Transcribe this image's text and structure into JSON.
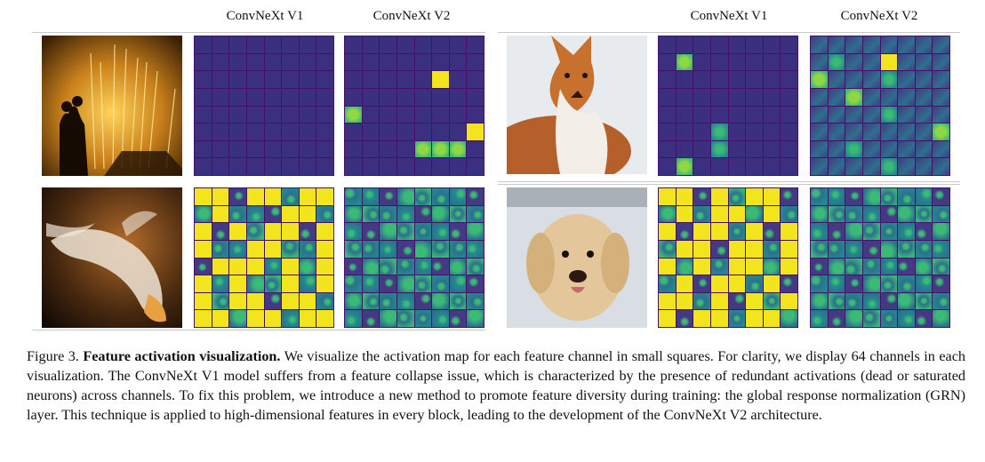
{
  "figure": {
    "column_headers": {
      "left_v1": "ConvNeXt V1",
      "left_v2": "ConvNeXt V2",
      "right_v1": "ConvNeXt V1",
      "right_v2": "ConvNeXt V2"
    },
    "colors": {
      "dead": "#3b2f7f",
      "low": "#443a83",
      "mid": "#2d6f8e",
      "teal": "#23898e",
      "green": "#3aba76",
      "bright": "#8fd744",
      "saturated": "#f2e41d"
    },
    "grids": {
      "g_fountain_v1": "AAAAAAAAAAAAAAAAAAAAAAAAAAAAAAAAAAAAAAAAAAAAAAAAAAAAAAAAAAAAAAAA",
      "g_fountain_v2": "AAAAAAAAAAAAAAAAAAAAASAAAAAAAAAAEAAAAAAAAAAAAAASAAAAEEEAAAAAAAAA",
      "g_fox_v1": "AAAAAAAAAEAAAAAAAAAAAAAAAAAAAAAAAAAAAAAAAAAGAAAAAAAGAAAAAEAAAAAA",
      "g_fox_v2": "BBBBBBBBBGBBSBBBEBBBGBBBBBEBBBBBBBBBGBBBBBBBBBBEBBGBBBBBBBBBGBBB",
      "g_fish_v1": "SSCSSCSSCSCCCSSCSCSCSSCSSCCSSCCSCSSSCSCSSCSCCSCSSCSSCSSCSSCSSCSS",
      "g_fish_v2": "CCCCCCCCCCCCCCCCCCCCCCCCCCCCCCCCCCCCCCCCCCCCCCCCCCCCCCCCCCCCCCCC",
      "g_dog_v1": "SSCSCSSCCSCSSCSCSCSSCSCSCSSCSSCSSCSCSSCSCSCSSCSCSSCSCSCSSCSSCSSC",
      "g_dog_v2": "CCCCCCCCCCCCCCCCCCCCCCCCCCCCCCCCCCCCCCCCCCCCCCCCCCCCCCCCCCCCCCCC"
    },
    "photos": [
      "fountain-silhouette-photo",
      "red-fox-photo",
      "koi-fish-photo",
      "golden-retriever-photo"
    ]
  },
  "caption": {
    "label": "Figure 3.",
    "title": "Feature activation visualization.",
    "body": "We visualize the activation map for each feature channel in small squares. For clarity, we display 64 channels in each visualization. The ConvNeXt V1 model suffers from a feature collapse issue, which is characterized by the presence of redundant activations (dead or saturated neurons) across channels. To fix this problem, we introduce a new method to promote feature diversity during training: the global response normalization (GRN) layer. This technique is applied to high-dimensional features in every block, leading to the development of the ConvNeXt V2 architecture."
  }
}
